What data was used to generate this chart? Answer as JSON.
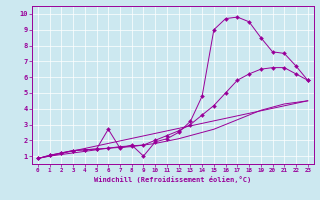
{
  "bg_color": "#cce8f0",
  "line_color": "#990099",
  "xlabel": "Windchill (Refroidissement éolien,°C)",
  "xlim": [
    -0.5,
    23.5
  ],
  "ylim": [
    0.5,
    10.5
  ],
  "xticks": [
    0,
    1,
    2,
    3,
    4,
    5,
    6,
    7,
    8,
    9,
    10,
    11,
    12,
    13,
    14,
    15,
    16,
    17,
    18,
    19,
    20,
    21,
    22,
    23
  ],
  "yticks": [
    1,
    2,
    3,
    4,
    5,
    6,
    7,
    8,
    9,
    10
  ],
  "line1_x": [
    0,
    1,
    2,
    3,
    4,
    5,
    6,
    7,
    8,
    9,
    10,
    11,
    12,
    13,
    14,
    15,
    16,
    17,
    18,
    19,
    20,
    21,
    22,
    23
  ],
  "line1_y": [
    0.85,
    1.05,
    1.2,
    1.35,
    1.4,
    1.45,
    2.7,
    1.5,
    1.7,
    1.0,
    1.9,
    2.1,
    2.5,
    3.2,
    4.8,
    9.0,
    9.7,
    9.8,
    9.5,
    8.5,
    7.6,
    7.5,
    6.7,
    5.8
  ],
  "line2_x": [
    0,
    1,
    2,
    3,
    4,
    5,
    6,
    7,
    8,
    9,
    10,
    11,
    12,
    13,
    14,
    15,
    16,
    17,
    18,
    19,
    20,
    21,
    22,
    23
  ],
  "line2_y": [
    0.85,
    1.05,
    1.2,
    1.35,
    1.4,
    1.45,
    1.5,
    1.6,
    1.65,
    1.7,
    2.0,
    2.3,
    2.6,
    3.0,
    3.6,
    4.2,
    5.0,
    5.8,
    6.2,
    6.5,
    6.6,
    6.6,
    6.2,
    5.8
  ],
  "line3_x": [
    0,
    1,
    2,
    3,
    4,
    5,
    6,
    7,
    8,
    9,
    10,
    11,
    12,
    13,
    14,
    15,
    16,
    17,
    18,
    19,
    20,
    21,
    22,
    23
  ],
  "line3_y": [
    0.85,
    1.0,
    1.1,
    1.2,
    1.3,
    1.4,
    1.5,
    1.55,
    1.6,
    1.7,
    1.8,
    1.95,
    2.1,
    2.3,
    2.5,
    2.7,
    3.0,
    3.3,
    3.6,
    3.9,
    4.1,
    4.3,
    4.4,
    4.5
  ],
  "line4_x": [
    0,
    23
  ],
  "line4_y": [
    0.85,
    4.5
  ]
}
